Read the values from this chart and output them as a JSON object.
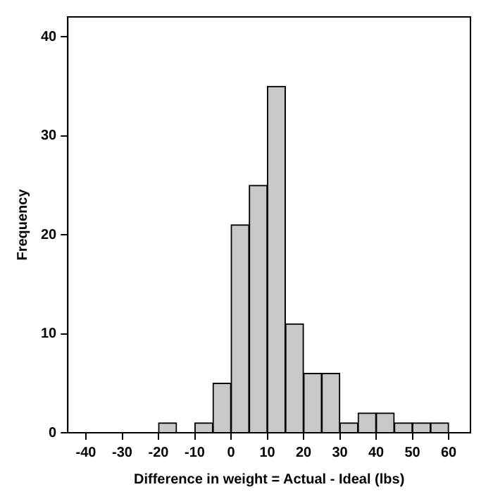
{
  "chart_data": {
    "type": "histogram",
    "xlabel": "Difference in weight = Actual - Ideal (lbs)",
    "ylabel": "Frequency",
    "bins": [
      -20,
      -15,
      -10,
      -5,
      0,
      5,
      10,
      15,
      20,
      25,
      30,
      35,
      40,
      45,
      50,
      55,
      60
    ],
    "values": [
      1,
      0,
      1,
      5,
      21,
      25,
      35,
      11,
      6,
      6,
      1,
      2,
      2,
      1,
      1,
      1
    ],
    "color": "#c8c8c8",
    "xlim": [
      -45,
      66
    ],
    "xticks": [
      -40,
      -30,
      -20,
      -10,
      0,
      10,
      20,
      30,
      40,
      50,
      60
    ],
    "ylim": [
      0,
      42
    ],
    "yticks": [
      0,
      10,
      20,
      30,
      40
    ],
    "grid": false
  }
}
